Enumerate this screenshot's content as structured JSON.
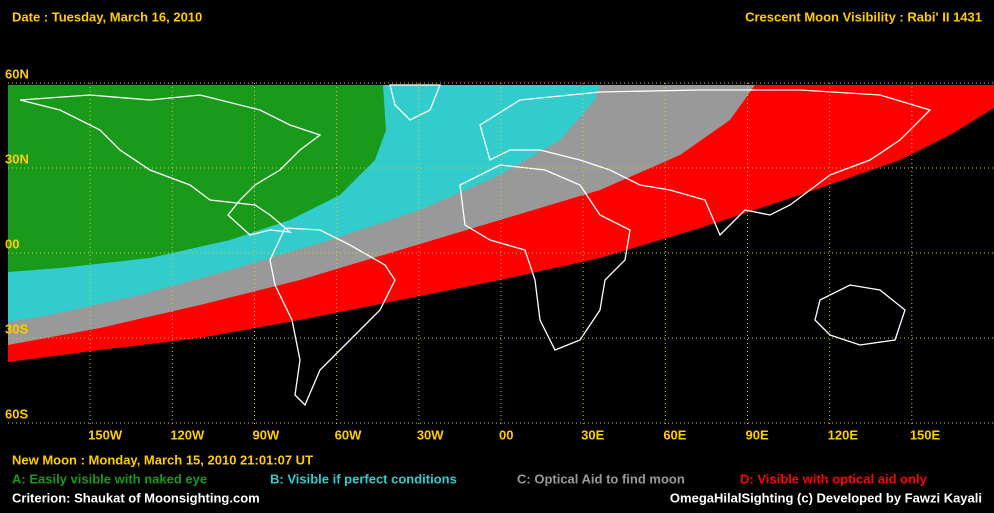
{
  "header": {
    "date": "Date : Tuesday, March 16, 2010",
    "title": "Crescent Moon Visibility : Rabi' II  1431"
  },
  "map": {
    "lat_labels": [
      "60N",
      "30N",
      "00",
      "30S",
      "60S"
    ],
    "lon_labels": [
      "150W",
      "120W",
      "90W",
      "60W",
      "30W",
      "00",
      "30E",
      "60E",
      "90E",
      "120E",
      "150E"
    ]
  },
  "footer": {
    "new_moon": "New Moon : Monday, March 15, 2010  21:01:07  UT",
    "criterion": "Criterion: Shaukat of Moonsighting.com",
    "credit": "OmegaHilalSighting  (c)  Developed by Fawzi Kayali"
  },
  "legend": [
    {
      "label": "A: Easily visible with naked eye",
      "color": "#1a9a1a"
    },
    {
      "label": "B: Visible if perfect conditions",
      "color": "#33cccc"
    },
    {
      "label": "C: Optical Aid to find moon",
      "color": "#999999"
    },
    {
      "label": "D: Visible with optical aid only",
      "color": "#ff0000"
    }
  ]
}
